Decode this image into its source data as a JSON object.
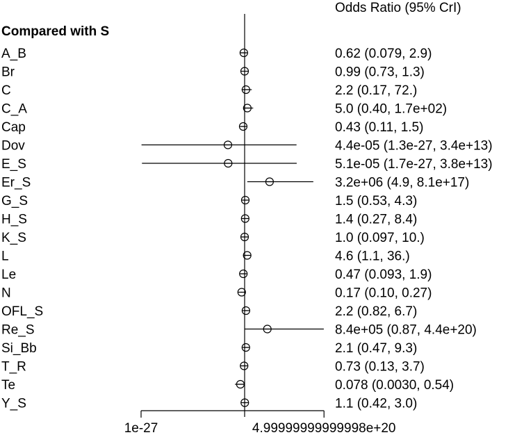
{
  "chart_data": {
    "type": "forest",
    "header_right": "Odds Ratio (95% CrI)",
    "group_heading": "Compared with S",
    "x_scale": "log",
    "reference_value": 1,
    "x_ticks": [
      {
        "value": 1e-27,
        "label": "1e-27"
      },
      {
        "value": 5e+20,
        "label": "4.99999999999998e+20"
      }
    ],
    "rows": [
      {
        "label": "A_B",
        "or": 0.62,
        "lo": 0.079,
        "hi": 2.9,
        "ci_text": "0.62 (0.079, 2.9)"
      },
      {
        "label": "Br",
        "or": 0.99,
        "lo": 0.73,
        "hi": 1.3,
        "ci_text": "0.99 (0.73, 1.3)"
      },
      {
        "label": "C",
        "or": 2.2,
        "lo": 0.17,
        "hi": 72,
        "ci_text": "2.2 (0.17, 72.)"
      },
      {
        "label": "C_A",
        "or": 5.0,
        "lo": 0.4,
        "hi": 170,
        "ci_text": "5.0 (0.40, 1.7e+02)"
      },
      {
        "label": "Cap",
        "or": 0.43,
        "lo": 0.11,
        "hi": 1.5,
        "ci_text": "0.43 (0.11, 1.5)"
      },
      {
        "label": "Dov",
        "or": 4.4e-05,
        "lo": 1.3e-27,
        "hi": 34000000000000.0,
        "ci_text": "4.4e-05 (1.3e-27, 3.4e+13)"
      },
      {
        "label": "E_S",
        "or": 5.1e-05,
        "lo": 1.7e-27,
        "hi": 38000000000000.0,
        "ci_text": "5.1e-05 (1.7e-27, 3.8e+13)"
      },
      {
        "label": "Er_S",
        "or": 3200000.0,
        "lo": 4.9,
        "hi": 8.1e+17,
        "ci_text": "3.2e+06 (4.9, 8.1e+17)"
      },
      {
        "label": "G_S",
        "or": 1.5,
        "lo": 0.53,
        "hi": 4.3,
        "ci_text": "1.5 (0.53, 4.3)"
      },
      {
        "label": "H_S",
        "or": 1.4,
        "lo": 0.27,
        "hi": 8.4,
        "ci_text": "1.4 (0.27, 8.4)"
      },
      {
        "label": "K_S",
        "or": 1.0,
        "lo": 0.097,
        "hi": 10,
        "ci_text": "1.0 (0.097, 10.)"
      },
      {
        "label": "L",
        "or": 4.6,
        "lo": 1.1,
        "hi": 36,
        "ci_text": "4.6 (1.1, 36.)"
      },
      {
        "label": "Le",
        "or": 0.47,
        "lo": 0.093,
        "hi": 1.9,
        "ci_text": "0.47 (0.093, 1.9)"
      },
      {
        "label": "N",
        "or": 0.17,
        "lo": 0.1,
        "hi": 0.27,
        "ci_text": "0.17 (0.10, 0.27)"
      },
      {
        "label": "OFL_S",
        "or": 2.2,
        "lo": 0.82,
        "hi": 6.7,
        "ci_text": "2.2 (0.82, 6.7)"
      },
      {
        "label": "Re_S",
        "or": 840000.0,
        "lo": 0.87,
        "hi": 4.4e+20,
        "ci_text": "8.4e+05 (0.87, 4.4e+20)"
      },
      {
        "label": "Si_Bb",
        "or": 2.1,
        "lo": 0.47,
        "hi": 9.3,
        "ci_text": "2.1 (0.47, 9.3)"
      },
      {
        "label": "T_R",
        "or": 0.73,
        "lo": 0.13,
        "hi": 3.7,
        "ci_text": "0.73 (0.13, 3.7)"
      },
      {
        "label": "Te",
        "or": 0.078,
        "lo": 0.003,
        "hi": 0.54,
        "ci_text": "0.078 (0.0030, 0.54)"
      },
      {
        "label": "Y_S",
        "or": 1.1,
        "lo": 0.42,
        "hi": 3.0,
        "ci_text": "1.1 (0.42, 3.0)"
      }
    ]
  }
}
